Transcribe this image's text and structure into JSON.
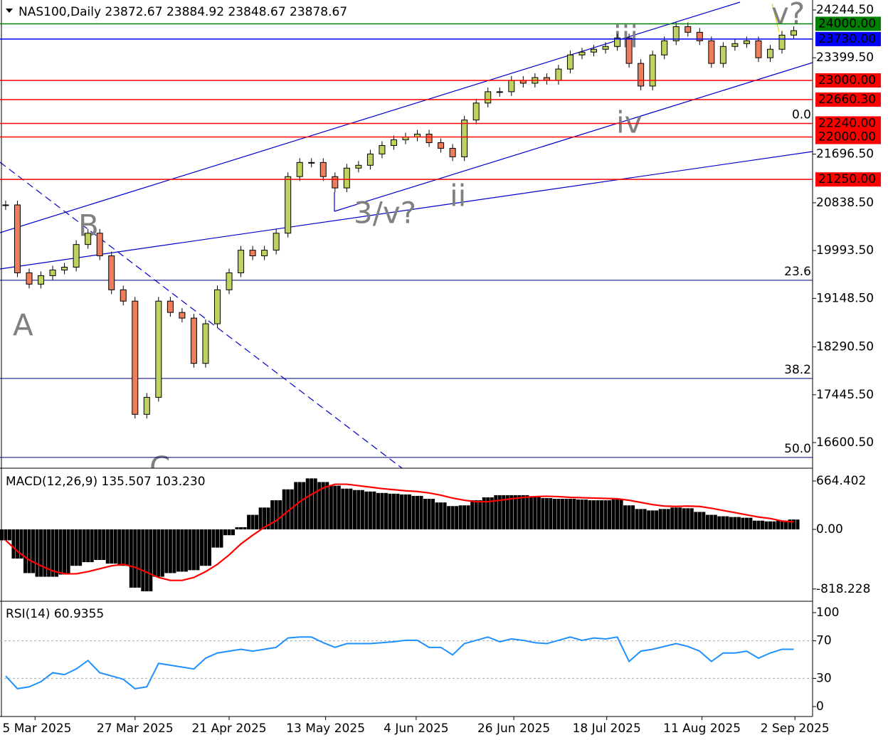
{
  "chart_data": [
    {
      "type": "candlestick",
      "title": "NAS100,Daily",
      "last_bar": {
        "open": 23872.67,
        "high": 23884.92,
        "low": 23848.67,
        "close": 23878.67
      },
      "close": [
        20800,
        19600,
        19400,
        19550,
        19650,
        19700,
        20100,
        20300,
        19900,
        19300,
        19100,
        17100,
        17400,
        19100,
        18900,
        18800,
        18000,
        18700,
        19300,
        19600,
        20000,
        19900,
        20000,
        20300,
        21300,
        21550,
        21550,
        21300,
        21100,
        21450,
        21500,
        21700,
        21850,
        21950,
        22000,
        22050,
        21900,
        21800,
        21650,
        22300,
        22600,
        22800,
        22800,
        23000,
        22950,
        23050,
        23000,
        23200,
        23450,
        23500,
        23550,
        23600,
        23750,
        23300,
        22900,
        23450,
        23700,
        23950,
        23850,
        23700,
        23300,
        23600,
        23650,
        23700,
        23400,
        23550,
        23800,
        23878.67
      ],
      "colors": {
        "up": "#bcd35f",
        "down": "#ee7d5c"
      },
      "xlim": [
        -0.48,
        68.6
      ],
      "xticks": [
        {
          "value": 2.5,
          "label": "5 Mar 2025"
        },
        {
          "value": 11,
          "label": "27 Mar 2025"
        },
        {
          "value": 19,
          "label": "21 Apr 2025"
        },
        {
          "value": 27.2,
          "label": "13 May 2025"
        },
        {
          "value": 34.9,
          "label": "4 Jun 2025"
        },
        {
          "value": 43.2,
          "label": "26 Jun 2025"
        },
        {
          "value": 51.1,
          "label": "18 Jul 2025"
        },
        {
          "value": 59.2,
          "label": "11 Aug 2025"
        },
        {
          "value": 67.1,
          "label": "2 Sep 2025"
        }
      ],
      "ylim": [
        16148,
        24420.5
      ],
      "yticks": [
        {
          "value": 24244.5,
          "label": "24244.50"
        },
        {
          "value": 23399.5,
          "label": "23399.50"
        },
        {
          "value": 21696.5,
          "label": "21696.50"
        },
        {
          "value": 20838.5,
          "label": "20838.50"
        },
        {
          "value": 19993.5,
          "label": "19993.50"
        },
        {
          "value": 19148.5,
          "label": "19148.50"
        },
        {
          "value": 18290.5,
          "label": "18290.50"
        },
        {
          "value": 17445.5,
          "label": "17445.50"
        },
        {
          "value": 16600.5,
          "label": "16600.50"
        }
      ],
      "levels": [
        {
          "value": 24000,
          "label": "24000.00",
          "color": "#008000"
        },
        {
          "value": 23730,
          "label": "23730.00",
          "color": "#0000ff"
        },
        {
          "value": 23000,
          "label": "23000.00",
          "color": "#ff0000"
        },
        {
          "value": 22660.3,
          "label": "22660.30",
          "color": "#ff0000"
        },
        {
          "value": 22240,
          "label": "22240.00",
          "color": "#ff0000"
        },
        {
          "value": 22000,
          "label": "22000.00",
          "color": "#ff0000"
        },
        {
          "value": 21250,
          "label": "21250.00",
          "color": "#ff0000"
        }
      ],
      "fib": [
        {
          "value": 22240,
          "label": "0.0"
        },
        {
          "value": 19468,
          "label": "23.6"
        },
        {
          "value": 17733,
          "label": "38.2"
        },
        {
          "value": 16338,
          "label": "50.0"
        }
      ],
      "waves": [
        "A",
        "B",
        "C",
        "3/v?",
        "ii",
        "iii",
        "iv",
        "v?"
      ]
    },
    {
      "type": "macd",
      "title": "MACD(12,26,9)",
      "readout": [
        "135.507",
        "103.230"
      ],
      "histogram": [
        -150,
        -400,
        -600,
        -650,
        -650,
        -620,
        -500,
        -450,
        -420,
        -470,
        -500,
        -800,
        -850,
        -650,
        -600,
        -580,
        -560,
        -500,
        -250,
        -80,
        30,
        200,
        300,
        400,
        550,
        650,
        700,
        650,
        600,
        560,
        540,
        520,
        500,
        490,
        480,
        460,
        420,
        370,
        320,
        330,
        400,
        440,
        470,
        470,
        470,
        450,
        430,
        420,
        420,
        410,
        400,
        400,
        410,
        330,
        280,
        260,
        280,
        300,
        290,
        240,
        200,
        180,
        170,
        160,
        120,
        110,
        120,
        135.507
      ],
      "signal": [
        -150,
        -300,
        -420,
        -500,
        -570,
        -610,
        -610,
        -580,
        -540,
        -500,
        -480,
        -520,
        -590,
        -660,
        -700,
        -700,
        -660,
        -580,
        -480,
        -350,
        -200,
        -80,
        30,
        120,
        250,
        380,
        480,
        570,
        620,
        620,
        600,
        580,
        560,
        545,
        530,
        520,
        500,
        470,
        430,
        400,
        380,
        380,
        400,
        420,
        440,
        450,
        455,
        450,
        440,
        435,
        430,
        425,
        420,
        400,
        370,
        340,
        320,
        315,
        320,
        315,
        290,
        260,
        230,
        200,
        170,
        150,
        115,
        103.23
      ],
      "colors": {
        "histogram": "#000000",
        "signal": "#ff0000"
      },
      "ylim": [
        -967,
        820.7
      ],
      "yticks": [
        664.402,
        {
          "value": 0,
          "label": "0.00"
        },
        -818.228
      ]
    },
    {
      "type": "line",
      "title": "RSI(14)",
      "readout": "60.9355",
      "values": [
        32.6,
        19,
        21,
        26.5,
        36,
        34,
        40,
        49,
        36,
        32.6,
        29,
        19,
        21,
        46,
        44,
        42,
        40,
        51.5,
        57,
        59,
        61,
        59,
        61,
        63,
        73,
        74,
        74,
        68,
        63,
        67,
        67,
        67,
        68,
        69,
        70.5,
        70.5,
        63,
        63,
        55,
        67,
        70.5,
        74,
        69,
        72,
        70.5,
        68,
        67,
        70.5,
        74,
        70.5,
        73,
        72,
        74,
        48,
        59,
        61,
        64,
        67,
        64,
        59,
        48,
        57,
        57,
        59,
        51.5,
        57,
        61,
        60.9355
      ],
      "color": "#1e90ff",
      "ylim": [
        -9.1,
        110.6
      ],
      "yticks": [
        100,
        70,
        30,
        0
      ],
      "levels": [
        70,
        30
      ]
    }
  ]
}
